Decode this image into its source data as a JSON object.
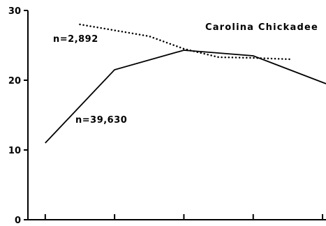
{
  "chart_data": {
    "type": "line",
    "title": "Carolina Chickadee",
    "x": [
      1,
      2,
      3,
      4,
      5
    ],
    "xlim": [
      0.75,
      5.05
    ],
    "ylim": [
      0,
      30
    ],
    "y_ticks": [
      0,
      10,
      20,
      30
    ],
    "y_tick_labels": [
      "0",
      "10",
      "20",
      "30"
    ],
    "grid": false,
    "series": [
      {
        "name": "n=39,630",
        "style": "solid",
        "x": [
          1,
          2,
          3,
          4,
          5.05
        ],
        "values": [
          11,
          21.5,
          24.3,
          23.5,
          19.5
        ]
      },
      {
        "name": "n=2,892",
        "style": "dotted",
        "x": [
          1.5,
          2.5,
          3,
          3.5,
          4,
          4.55
        ],
        "values": [
          28,
          26.3,
          24.5,
          23.3,
          23.2,
          23.0
        ]
      }
    ],
    "colors": {
      "line": "#000000",
      "background": "#ffffff"
    }
  }
}
